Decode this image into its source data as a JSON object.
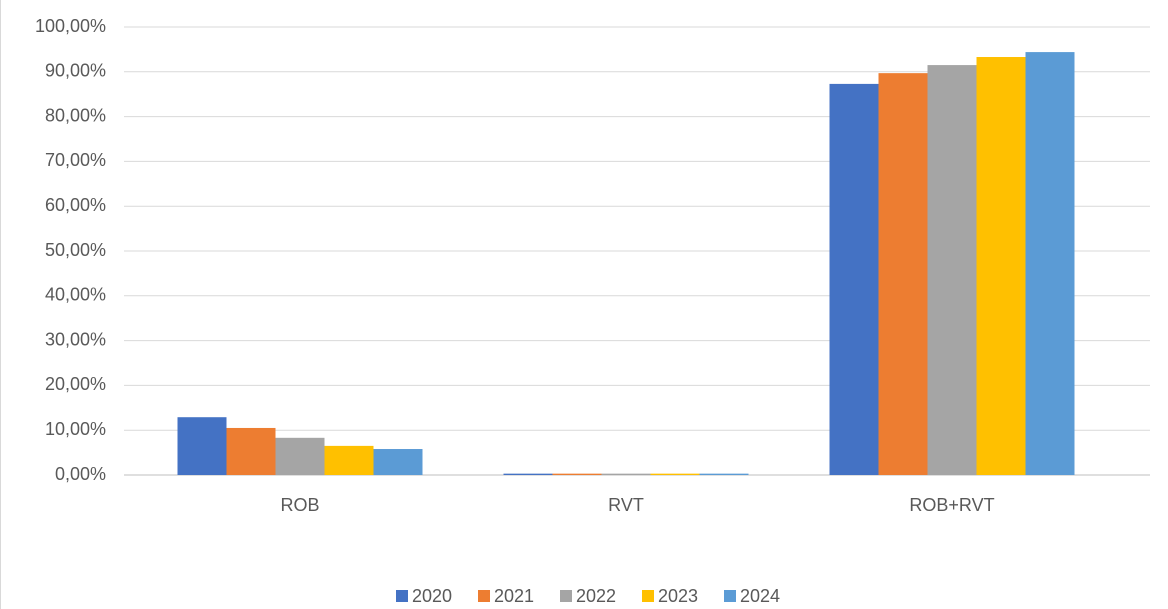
{
  "chart_data": {
    "type": "bar",
    "categories": [
      "ROB",
      "RVT",
      "ROB+RVT"
    ],
    "series": [
      {
        "name": "2020",
        "color": "#4472c4",
        "values": [
          12.9,
          0.3,
          87.3
        ]
      },
      {
        "name": "2021",
        "color": "#ed7d31",
        "values": [
          10.5,
          0.3,
          89.7
        ]
      },
      {
        "name": "2022",
        "color": "#a5a5a5",
        "values": [
          8.3,
          0.3,
          91.5
        ]
      },
      {
        "name": "2023",
        "color": "#ffc000",
        "values": [
          6.5,
          0.3,
          93.3
        ]
      },
      {
        "name": "2024",
        "color": "#5b9bd5",
        "values": [
          5.8,
          0.3,
          94.4
        ]
      }
    ],
    "ylim": [
      0,
      100
    ],
    "yticks": [
      {
        "value": 0,
        "label": "0,00%"
      },
      {
        "value": 10,
        "label": "10,00%"
      },
      {
        "value": 20,
        "label": "20,00%"
      },
      {
        "value": 30,
        "label": "30,00%"
      },
      {
        "value": 40,
        "label": "40,00%"
      },
      {
        "value": 50,
        "label": "50,00%"
      },
      {
        "value": 60,
        "label": "60,00%"
      },
      {
        "value": 70,
        "label": "70,00%"
      },
      {
        "value": 80,
        "label": "80,00%"
      },
      {
        "value": 90,
        "label": "90,00%"
      },
      {
        "value": 100,
        "label": "100,00%"
      }
    ],
    "grid": true,
    "legend": "bottom"
  }
}
